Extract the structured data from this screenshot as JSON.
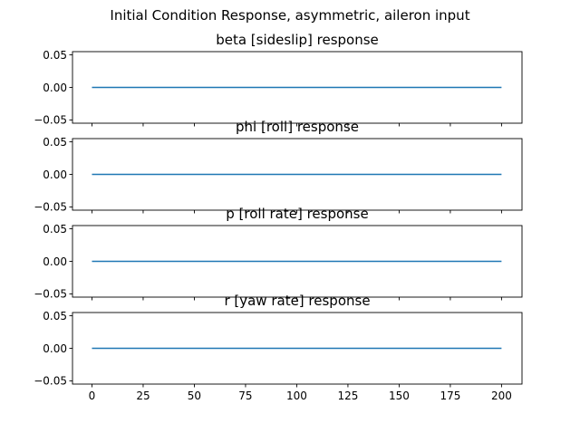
{
  "figure_title": "Initial Condition Response, asymmetric, aileron input",
  "chart_data": [
    {
      "type": "line",
      "title": "beta [sideslip] response",
      "xlabel": "",
      "ylabel": "",
      "xlim": [
        -9.5,
        210
      ],
      "ylim": [
        -0.055,
        0.055
      ],
      "xticks": [
        0,
        25,
        50,
        75,
        100,
        125,
        150,
        175,
        200
      ],
      "yticks": [
        -0.05,
        0.0,
        0.05
      ],
      "ytick_labels": [
        "−0.05",
        "0.00",
        "0.05"
      ],
      "show_xtick_labels": false,
      "grid": false,
      "series": [
        {
          "color": "#1f77b4",
          "x": [
            0,
            200
          ],
          "y": [
            0,
            0
          ]
        }
      ]
    },
    {
      "type": "line",
      "title": "phi [roll] response",
      "xlabel": "",
      "ylabel": "",
      "xlim": [
        -9.5,
        210
      ],
      "ylim": [
        -0.055,
        0.055
      ],
      "xticks": [
        0,
        25,
        50,
        75,
        100,
        125,
        150,
        175,
        200
      ],
      "yticks": [
        -0.05,
        0.0,
        0.05
      ],
      "ytick_labels": [
        "−0.05",
        "0.00",
        "0.05"
      ],
      "show_xtick_labels": false,
      "grid": false,
      "series": [
        {
          "color": "#1f77b4",
          "x": [
            0,
            200
          ],
          "y": [
            0,
            0
          ]
        }
      ]
    },
    {
      "type": "line",
      "title": "p [roll rate] response",
      "xlabel": "",
      "ylabel": "",
      "xlim": [
        -9.5,
        210
      ],
      "ylim": [
        -0.055,
        0.055
      ],
      "xticks": [
        0,
        25,
        50,
        75,
        100,
        125,
        150,
        175,
        200
      ],
      "yticks": [
        -0.05,
        0.0,
        0.05
      ],
      "ytick_labels": [
        "−0.05",
        "0.00",
        "0.05"
      ],
      "show_xtick_labels": false,
      "grid": false,
      "series": [
        {
          "color": "#1f77b4",
          "x": [
            0,
            200
          ],
          "y": [
            0,
            0
          ]
        }
      ]
    },
    {
      "type": "line",
      "title": "r [yaw rate] response",
      "xlabel": "",
      "ylabel": "",
      "xlim": [
        -9.5,
        210
      ],
      "ylim": [
        -0.055,
        0.055
      ],
      "xticks": [
        0,
        25,
        50,
        75,
        100,
        125,
        150,
        175,
        200
      ],
      "xtick_labels": [
        "0",
        "25",
        "50",
        "75",
        "100",
        "125",
        "150",
        "175",
        "200"
      ],
      "yticks": [
        -0.05,
        0.0,
        0.05
      ],
      "ytick_labels": [
        "−0.05",
        "0.00",
        "0.05"
      ],
      "show_xtick_labels": true,
      "grid": false,
      "series": [
        {
          "color": "#1f77b4",
          "x": [
            0,
            200
          ],
          "y": [
            0,
            0
          ]
        }
      ]
    }
  ]
}
